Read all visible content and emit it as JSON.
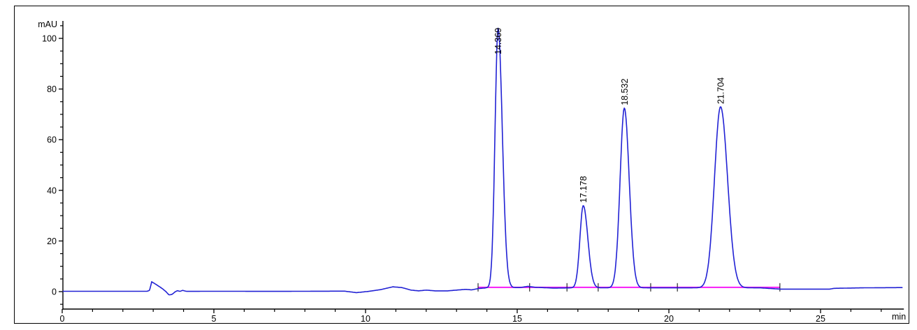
{
  "chart_data": {
    "type": "line",
    "title": "",
    "subtitle": "",
    "xlabel": "min",
    "ylabel": "mAU",
    "legend": [],
    "grid": false,
    "x_axis": {
      "min": 0,
      "max": 27.7,
      "major_ticks": [
        0,
        5,
        10,
        15,
        20,
        25
      ],
      "major_tick_labels": [
        "0",
        "5",
        "10",
        "15",
        "20",
        "25"
      ],
      "minor_tick_step": 1
    },
    "y_axis": {
      "min": -7,
      "max": 112,
      "major_ticks": [
        0,
        20,
        40,
        60,
        80,
        100
      ],
      "major_tick_labels": [
        "0",
        "20",
        "40",
        "60",
        "80",
        "100"
      ],
      "minor_tick_step": 5,
      "minor_tick_min": -5,
      "minor_tick_max": 105
    },
    "peaks": [
      {
        "label": "14.369",
        "retention_time_min": 14.369,
        "height_mAU": 102.5,
        "apex_mAU": 104,
        "sigma_left_min": 0.1,
        "sigma_right_min": 0.14
      },
      {
        "label": "17.178",
        "retention_time_min": 17.178,
        "height_mAU": 32.5,
        "apex_mAU": 34,
        "sigma_left_min": 0.11,
        "sigma_right_min": 0.15
      },
      {
        "label": "18.532",
        "retention_time_min": 18.532,
        "height_mAU": 71.0,
        "apex_mAU": 72.5,
        "sigma_left_min": 0.14,
        "sigma_right_min": 0.16
      },
      {
        "label": "21.704",
        "retention_time_min": 21.704,
        "height_mAU": 71.5,
        "apex_mAU": 73,
        "sigma_left_min": 0.2,
        "sigma_right_min": 0.23
      }
    ],
    "baseline_anchors_min_mAU": [
      [
        0.0,
        0.15
      ],
      [
        2.8,
        0.15
      ],
      [
        2.88,
        0.5
      ],
      [
        2.95,
        3.9
      ],
      [
        3.02,
        3.4
      ],
      [
        3.15,
        2.4
      ],
      [
        3.3,
        1.2
      ],
      [
        3.42,
        0.0
      ],
      [
        3.52,
        -1.3
      ],
      [
        3.62,
        -1.1
      ],
      [
        3.72,
        -0.1
      ],
      [
        3.8,
        0.4
      ],
      [
        3.88,
        0.1
      ],
      [
        3.97,
        0.5
      ],
      [
        4.1,
        0.1
      ],
      [
        5.0,
        0.15
      ],
      [
        7.0,
        0.1
      ],
      [
        9.3,
        0.2
      ],
      [
        9.7,
        -0.4
      ],
      [
        10.1,
        0.1
      ],
      [
        10.5,
        0.8
      ],
      [
        10.9,
        1.9
      ],
      [
        11.2,
        1.6
      ],
      [
        11.5,
        0.6
      ],
      [
        11.75,
        0.3
      ],
      [
        12.0,
        0.6
      ],
      [
        12.3,
        0.3
      ],
      [
        12.7,
        0.3
      ],
      [
        13.0,
        0.6
      ],
      [
        13.3,
        0.9
      ],
      [
        13.5,
        0.7
      ],
      [
        13.71,
        1.2
      ],
      [
        14.0,
        1.5
      ],
      [
        15.1,
        1.6
      ],
      [
        15.35,
        2.1
      ],
      [
        15.6,
        1.7
      ],
      [
        16.2,
        1.4
      ],
      [
        17.0,
        1.5
      ],
      [
        23.0,
        1.5
      ],
      [
        23.66,
        1.0
      ],
      [
        25.3,
        1.0
      ],
      [
        25.45,
        1.3
      ],
      [
        26.4,
        1.5
      ],
      [
        27.7,
        1.6
      ]
    ],
    "integration": {
      "baseline_mAU": 1.7,
      "start_min": 13.71,
      "end_min": 23.66,
      "event_tick_times_min": [
        13.71,
        15.41,
        16.64,
        17.67,
        19.4,
        20.28,
        23.66
      ]
    },
    "colors": {
      "trace": "#2121d4",
      "integration_baseline": "#f71bf7",
      "axis": "#000000",
      "text": "#000000",
      "background": "#ffffff"
    }
  }
}
